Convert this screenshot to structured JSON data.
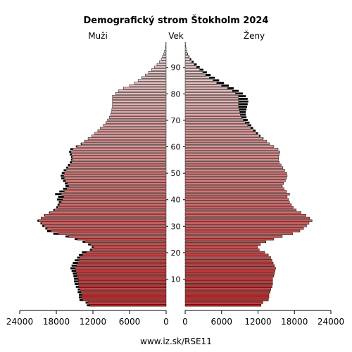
{
  "chart_data": {
    "type": "bar",
    "title": "Demografický strom Štokholm 2024",
    "left_label": "Muži",
    "center_label": "Vek",
    "right_label": "Ženy",
    "footer": "www.iz.sk/RSE11",
    "xlim": [
      0,
      24000
    ],
    "x_ticks": [
      24000,
      18000,
      12000,
      6000,
      0
    ],
    "x_ticks_right": [
      0,
      6000,
      12000,
      18000,
      24000
    ],
    "age_ticks": [
      10,
      20,
      30,
      40,
      50,
      60,
      70,
      80,
      90
    ],
    "colors": {
      "bar_light": "#f2dede",
      "bar_dark": "#cc1f1f",
      "outline": "#000000",
      "surplus": "#000000"
    },
    "ages": [
      0,
      1,
      2,
      3,
      4,
      5,
      6,
      7,
      8,
      9,
      10,
      11,
      12,
      13,
      14,
      15,
      16,
      17,
      18,
      19,
      20,
      21,
      22,
      23,
      24,
      25,
      26,
      27,
      28,
      29,
      30,
      31,
      32,
      33,
      34,
      35,
      36,
      37,
      38,
      39,
      40,
      41,
      42,
      43,
      44,
      45,
      46,
      47,
      48,
      49,
      50,
      51,
      52,
      53,
      54,
      55,
      56,
      57,
      58,
      59,
      60,
      61,
      62,
      63,
      64,
      65,
      66,
      67,
      68,
      69,
      70,
      71,
      72,
      73,
      74,
      75,
      76,
      77,
      78,
      79,
      80,
      81,
      82,
      83,
      84,
      85,
      86,
      87,
      88,
      89,
      90,
      91,
      92,
      93,
      94,
      95,
      96,
      97,
      98,
      99
    ],
    "series": [
      {
        "name": "Muži",
        "values": [
          13000,
          13200,
          14200,
          14300,
          14300,
          14500,
          14500,
          14800,
          15000,
          15100,
          15100,
          15200,
          15300,
          15500,
          15700,
          15500,
          15300,
          15000,
          14600,
          14300,
          13800,
          12500,
          12200,
          12800,
          13700,
          15000,
          16500,
          18500,
          19500,
          19800,
          20300,
          20600,
          21100,
          20500,
          20000,
          19200,
          18500,
          18000,
          17800,
          17600,
          17900,
          17700,
          18200,
          17500,
          16900,
          16500,
          16600,
          16900,
          17200,
          17300,
          17100,
          16800,
          16400,
          16100,
          15800,
          15600,
          15600,
          15800,
          15900,
          15700,
          14800,
          14000,
          13400,
          12800,
          12200,
          11700,
          11200,
          10800,
          10300,
          9900,
          9600,
          9300,
          9100,
          9000,
          8900,
          8800,
          8800,
          8800,
          8800,
          8800,
          8300,
          7800,
          7000,
          6000,
          5200,
          4600,
          4000,
          3400,
          2900,
          2400,
          1900,
          1500,
          1100,
          800,
          600,
          400,
          250,
          150,
          80,
          40
        ],
        "color": "#000000"
      },
      {
        "name": "Ženy",
        "values": [
          12500,
          12800,
          13700,
          13800,
          13800,
          14000,
          14100,
          14300,
          14400,
          14400,
          14400,
          14600,
          14700,
          14800,
          14900,
          14700,
          14500,
          14300,
          14100,
          13700,
          13100,
          12200,
          11900,
          12400,
          13300,
          14600,
          16000,
          17700,
          18900,
          19500,
          20000,
          20400,
          20900,
          20500,
          19900,
          19100,
          18300,
          17800,
          17500,
          17200,
          17000,
          16800,
          17200,
          16700,
          16300,
          16000,
          16200,
          16500,
          16700,
          16800,
          16700,
          16400,
          16100,
          15800,
          15500,
          15400,
          15400,
          15500,
          15600,
          15300,
          14600,
          13900,
          13400,
          12900,
          12400,
          12000,
          11600,
          11200,
          10900,
          10600,
          10300,
          10100,
          10000,
          10000,
          10100,
          10200,
          10300,
          10400,
          10300,
          10000,
          9500,
          8800,
          8000,
          7200,
          6400,
          5600,
          4900,
          4200,
          3600,
          3000,
          2400,
          1900,
          1400,
          1000,
          700,
          450,
          280,
          170,
          90,
          50
        ],
        "color": "#000000"
      }
    ]
  }
}
